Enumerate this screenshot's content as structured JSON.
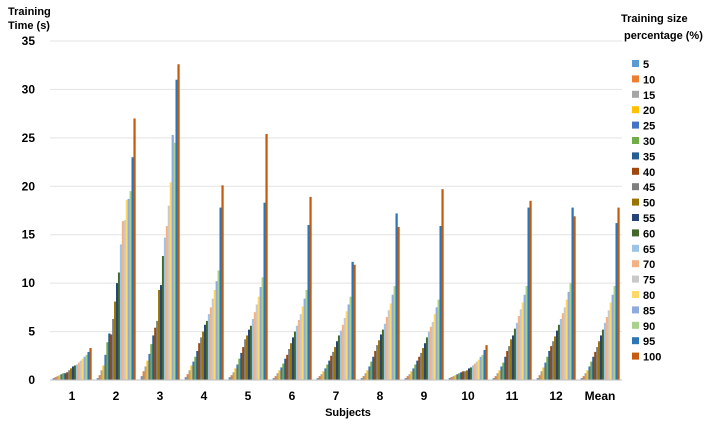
{
  "chart_data": {
    "type": "bar",
    "ylabel_lines": [
      "Training",
      "Time (s)"
    ],
    "xlabel": "Subjects",
    "legend_title_lines": [
      "Training size",
      "percentage (%)"
    ],
    "legend_position": "right",
    "ylim": [
      0,
      35
    ],
    "yticks": [
      0,
      5,
      10,
      15,
      20,
      25,
      30,
      35
    ],
    "grid": true,
    "categories": [
      "1",
      "2",
      "3",
      "4",
      "5",
      "6",
      "7",
      "8",
      "9",
      "10",
      "11",
      "12",
      "Mean"
    ],
    "series": [
      {
        "name": "5",
        "color": "#5b9bd5",
        "values": [
          0.2,
          0.2,
          0.4,
          0.3,
          0.3,
          0.2,
          0.2,
          0.2,
          0.2,
          0.2,
          0.2,
          0.2,
          0.2
        ]
      },
      {
        "name": "10",
        "color": "#ed7d31",
        "values": [
          0.3,
          0.5,
          0.9,
          0.6,
          0.5,
          0.4,
          0.4,
          0.4,
          0.4,
          0.3,
          0.4,
          0.5,
          0.4
        ]
      },
      {
        "name": "15",
        "color": "#a5a5a5",
        "values": [
          0.4,
          1.0,
          1.4,
          1.0,
          0.8,
          0.7,
          0.6,
          0.7,
          0.6,
          0.4,
          0.7,
          0.9,
          0.7
        ]
      },
      {
        "name": "20",
        "color": "#ffc000",
        "values": [
          0.5,
          1.5,
          2.0,
          1.5,
          1.2,
          1.0,
          0.9,
          1.0,
          0.9,
          0.5,
          1.0,
          1.3,
          1.0
        ]
      },
      {
        "name": "25",
        "color": "#4472c4",
        "values": [
          0.6,
          2.6,
          2.7,
          1.9,
          1.6,
          1.3,
          1.2,
          1.4,
          1.2,
          0.6,
          1.4,
          1.8,
          1.4
        ]
      },
      {
        "name": "30",
        "color": "#70ad47",
        "values": [
          0.7,
          3.9,
          3.7,
          2.4,
          2.2,
          1.7,
          1.6,
          1.9,
          1.6,
          0.7,
          1.8,
          2.4,
          1.9
        ]
      },
      {
        "name": "35",
        "color": "#255e91",
        "values": [
          0.7,
          4.8,
          4.6,
          3.0,
          2.8,
          2.2,
          2.0,
          2.4,
          2.0,
          0.8,
          2.4,
          3.0,
          2.4
        ]
      },
      {
        "name": "40",
        "color": "#9e480e",
        "values": [
          0.8,
          4.7,
          5.4,
          3.8,
          3.4,
          2.6,
          2.5,
          3.0,
          2.4,
          0.9,
          3.0,
          3.5,
          2.9
        ]
      },
      {
        "name": "45",
        "color": "#7f7f7f",
        "values": [
          1.0,
          6.3,
          6.1,
          4.4,
          4.2,
          3.2,
          2.9,
          3.6,
          2.8,
          0.9,
          3.5,
          4.0,
          3.4
        ]
      },
      {
        "name": "50",
        "color": "#997300",
        "values": [
          1.2,
          8.1,
          9.3,
          5.0,
          4.6,
          3.8,
          3.4,
          4.1,
          3.3,
          1.0,
          4.2,
          4.5,
          4.0
        ]
      },
      {
        "name": "55",
        "color": "#264478",
        "values": [
          1.4,
          10.0,
          9.8,
          5.7,
          5.2,
          4.4,
          4.0,
          4.7,
          3.8,
          1.2,
          4.6,
          5.1,
          4.6
        ]
      },
      {
        "name": "60",
        "color": "#43682b",
        "values": [
          1.5,
          11.1,
          12.8,
          6.1,
          5.6,
          5.0,
          4.6,
          5.2,
          4.4,
          1.3,
          5.3,
          5.7,
          5.2
        ]
      },
      {
        "name": "65",
        "color": "#9dc3e6",
        "values": [
          1.6,
          14.0,
          14.7,
          6.8,
          6.3,
          5.6,
          5.1,
          5.8,
          5.0,
          1.5,
          5.9,
          6.3,
          5.9
        ]
      },
      {
        "name": "70",
        "color": "#f4b183",
        "values": [
          1.8,
          16.4,
          15.9,
          7.5,
          7.0,
          6.2,
          5.7,
          6.5,
          5.5,
          1.7,
          6.6,
          6.9,
          6.5
        ]
      },
      {
        "name": "75",
        "color": "#c9c9c9",
        "values": [
          2.0,
          16.5,
          18.0,
          8.4,
          7.8,
          6.8,
          6.4,
          7.2,
          6.0,
          1.9,
          7.3,
          7.5,
          7.2
        ]
      },
      {
        "name": "80",
        "color": "#ffd966",
        "values": [
          2.2,
          18.6,
          20.4,
          9.3,
          8.6,
          7.6,
          7.1,
          7.9,
          6.8,
          2.1,
          8.0,
          8.3,
          8.0
        ]
      },
      {
        "name": "85",
        "color": "#8faadc",
        "values": [
          2.4,
          18.7,
          25.3,
          10.2,
          9.6,
          8.4,
          7.8,
          8.8,
          7.5,
          2.4,
          8.8,
          9.1,
          8.8
        ]
      },
      {
        "name": "90",
        "color": "#a9d18e",
        "values": [
          2.6,
          19.5,
          24.5,
          11.3,
          10.6,
          9.3,
          8.6,
          9.7,
          8.3,
          2.6,
          9.7,
          10.0,
          9.7
        ]
      },
      {
        "name": "95",
        "color": "#2e75b6",
        "values": [
          2.9,
          23.0,
          31.0,
          17.8,
          18.3,
          16.0,
          12.2,
          17.2,
          15.9,
          3.1,
          17.8,
          17.8,
          16.2
        ]
      },
      {
        "name": "100",
        "color": "#c55a11",
        "values": [
          3.3,
          27.0,
          32.6,
          20.1,
          25.4,
          18.9,
          11.9,
          15.8,
          19.7,
          3.6,
          18.5,
          16.9,
          17.8
        ]
      }
    ]
  }
}
